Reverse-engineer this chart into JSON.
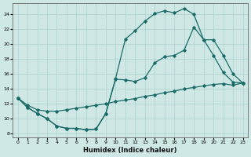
{
  "xlabel": "Humidex (Indice chaleur)",
  "xlim": [
    -0.5,
    23.5
  ],
  "ylim": [
    7.5,
    25.5
  ],
  "xticks": [
    0,
    1,
    2,
    3,
    4,
    5,
    6,
    7,
    8,
    9,
    10,
    11,
    12,
    13,
    14,
    15,
    16,
    17,
    18,
    19,
    20,
    21,
    22,
    23
  ],
  "yticks": [
    8,
    10,
    12,
    14,
    16,
    18,
    20,
    22,
    24
  ],
  "bg_color": "#cfe8e6",
  "grid_color": "#b0d5d2",
  "line_color": "#1a6b68",
  "curve1_x": [
    0,
    1,
    2,
    3,
    4,
    5,
    6,
    7,
    8,
    9,
    10,
    11,
    12,
    13,
    14,
    15,
    16,
    17,
    18,
    19,
    20,
    21,
    22,
    23
  ],
  "curve1_y": [
    12.8,
    11.5,
    10.7,
    10.0,
    9.0,
    8.7,
    8.7,
    8.5,
    8.6,
    10.7,
    15.4,
    20.7,
    21.8,
    23.1,
    24.1,
    24.5,
    24.2,
    24.8,
    24.0,
    20.6,
    18.5,
    16.2,
    14.9,
    14.8
  ],
  "curve2_x": [
    0,
    1,
    2,
    3,
    4,
    5,
    6,
    7,
    8,
    9,
    10,
    11,
    12,
    13,
    14,
    15,
    16,
    17,
    18,
    19,
    20,
    21,
    22,
    23
  ],
  "curve2_y": [
    12.8,
    11.5,
    10.7,
    10.0,
    9.0,
    8.7,
    8.7,
    8.5,
    8.6,
    10.7,
    15.3,
    15.2,
    15.0,
    15.5,
    17.5,
    18.3,
    18.5,
    19.2,
    22.3,
    20.6,
    20.6,
    18.5,
    16.0,
    14.8
  ],
  "curve3_x": [
    0,
    1,
    2,
    3,
    4,
    5,
    6,
    7,
    8,
    9,
    10,
    11,
    12,
    13,
    14,
    15,
    16,
    17,
    18,
    19,
    20,
    21,
    22,
    23
  ],
  "curve3_y": [
    12.8,
    11.8,
    11.2,
    11.0,
    11.0,
    11.2,
    11.4,
    11.6,
    11.8,
    12.0,
    12.3,
    12.5,
    12.7,
    13.0,
    13.2,
    13.5,
    13.7,
    14.0,
    14.2,
    14.4,
    14.6,
    14.7,
    14.5,
    14.8
  ]
}
